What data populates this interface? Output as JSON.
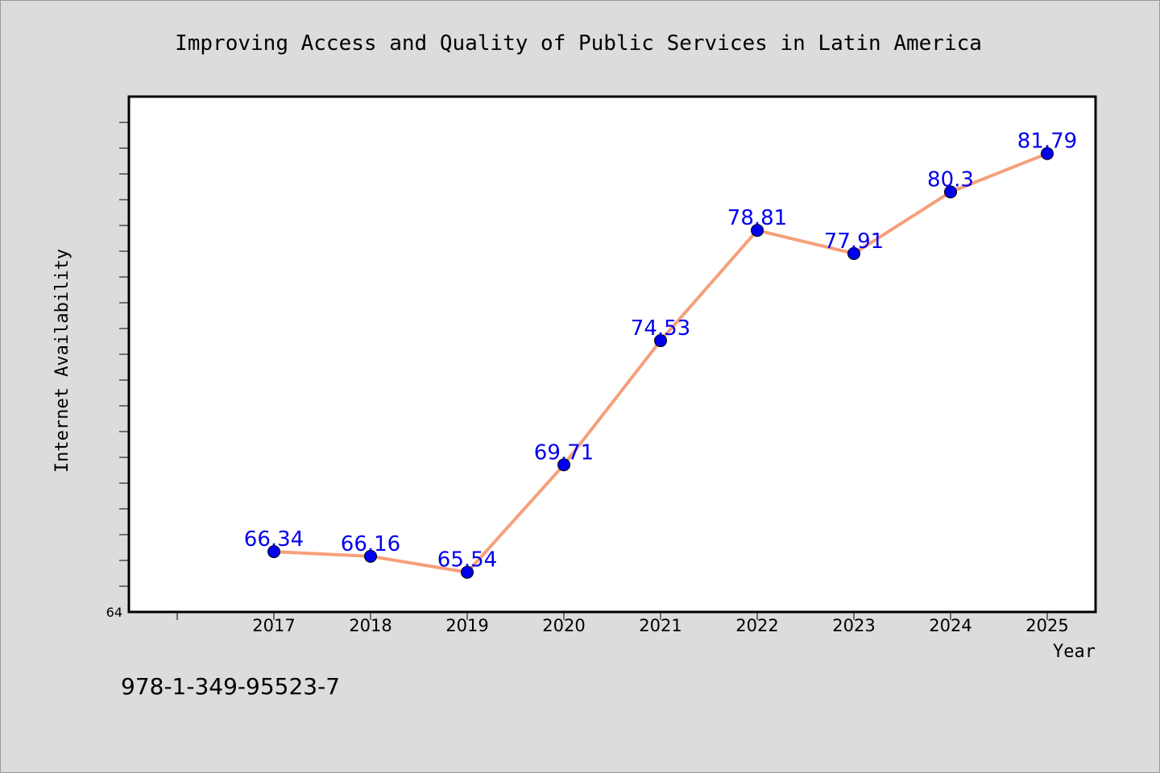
{
  "chart_data": {
    "type": "line",
    "title": "Improving Access and Quality of Public Services in Latin America",
    "xlabel": "Year",
    "ylabel": "Internet Availability",
    "categories": [
      "2017",
      "2018",
      "2019",
      "2020",
      "2021",
      "2022",
      "2023",
      "2024",
      "2025"
    ],
    "series": [
      {
        "values": [
          66.34,
          66.16,
          65.54,
          69.71,
          74.53,
          78.81,
          77.91,
          80.3,
          81.79
        ]
      }
    ],
    "data_labels": [
      "66.34",
      "66.16",
      "65.54",
      "69.71",
      "74.53",
      "78.81",
      "77.91",
      "80.3",
      "81.79"
    ],
    "ylim": [
      64,
      84
    ],
    "ytick_labels": [
      "64"
    ],
    "grid": false,
    "legend": "none",
    "colors": {
      "line": "#f5a07a",
      "marker": "#0000ee",
      "data_label": "#0000ee",
      "plot_background": "#ffffff",
      "page_background": "#dcdcdc"
    }
  },
  "footnote": "978-1-349-95523-7"
}
